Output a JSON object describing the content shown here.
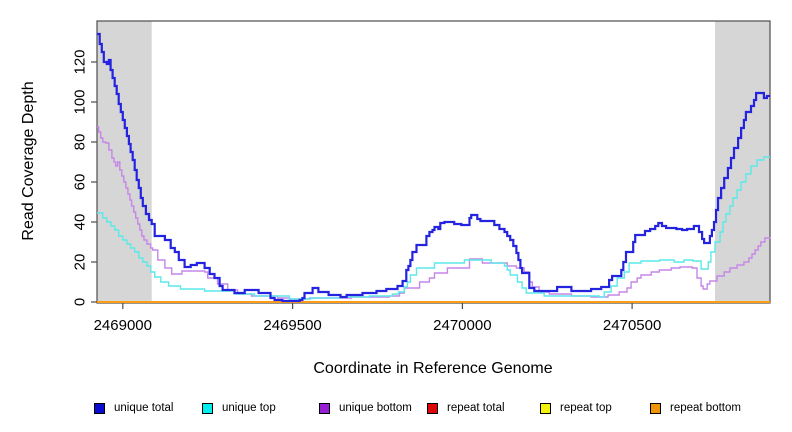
{
  "chart_data": {
    "type": "line",
    "xlabel": "Coordinate in Reference Genome",
    "ylabel": "Read Coverage Depth",
    "xlim": [
      2468924,
      2470906
    ],
    "ylim": [
      0,
      140.5
    ],
    "x_ticks": [
      "2469000",
      "2469500",
      "2470000",
      "2470500"
    ],
    "x_tick_values": [
      2469000,
      2469500,
      2470000,
      2470500
    ],
    "y_ticks": [
      "0",
      "20",
      "40",
      "60",
      "80",
      "100",
      "120"
    ],
    "y_tick_values": [
      0,
      20,
      40,
      60,
      80,
      100,
      120
    ],
    "grid": "off",
    "legend_position": "bottom",
    "shaded_color": "#d6d6d6",
    "axis_color": "#4d4d4d",
    "shaded_regions": [
      {
        "from": 2468924,
        "to": 2469085
      },
      {
        "from": 2470744,
        "to": 2470906
      }
    ],
    "series": [
      {
        "name": "unique total",
        "color": "#0c0cd0",
        "line_color": "#2424e0",
        "line_width": 2.2,
        "points": [
          [
            2468924,
            134
          ],
          [
            2468932,
            129
          ],
          [
            2468938,
            125
          ],
          [
            2468944,
            120
          ],
          [
            2468953,
            119
          ],
          [
            2468959,
            121
          ],
          [
            2468964,
            116
          ],
          [
            2468970,
            112
          ],
          [
            2468976,
            108
          ],
          [
            2468982,
            104
          ],
          [
            2468988,
            99
          ],
          [
            2468994,
            95
          ],
          [
            2469000,
            91
          ],
          [
            2469006,
            87
          ],
          [
            2469012,
            83
          ],
          [
            2469018,
            79
          ],
          [
            2469023,
            75
          ],
          [
            2469029,
            71
          ],
          [
            2469035,
            66
          ],
          [
            2469041,
            61
          ],
          [
            2469047,
            57
          ],
          [
            2469053,
            52
          ],
          [
            2469059,
            48
          ],
          [
            2469068,
            44
          ],
          [
            2469077,
            41
          ],
          [
            2469085,
            39
          ],
          [
            2469094,
            33
          ],
          [
            2469124,
            31
          ],
          [
            2469141,
            27
          ],
          [
            2469153,
            25
          ],
          [
            2469165,
            21
          ],
          [
            2469182,
            17.5
          ],
          [
            2469200,
            18.5
          ],
          [
            2469218,
            19.5
          ],
          [
            2469241,
            17
          ],
          [
            2469256,
            14
          ],
          [
            2469270,
            12
          ],
          [
            2469285,
            8
          ],
          [
            2469294,
            6
          ],
          [
            2469329,
            4.5
          ],
          [
            2469359,
            6
          ],
          [
            2469400,
            4.5
          ],
          [
            2469435,
            2
          ],
          [
            2469447,
            1
          ],
          [
            2469470,
            0.5
          ],
          [
            2469521,
            1
          ],
          [
            2469529,
            2
          ],
          [
            2469535,
            4.5
          ],
          [
            2469559,
            7
          ],
          [
            2469576,
            5
          ],
          [
            2469606,
            3.5
          ],
          [
            2469641,
            2.5
          ],
          [
            2469659,
            3.5
          ],
          [
            2469706,
            4.5
          ],
          [
            2469747,
            5.5
          ],
          [
            2469776,
            6.5
          ],
          [
            2469809,
            8
          ],
          [
            2469824,
            10.5
          ],
          [
            2469835,
            16
          ],
          [
            2469841,
            18
          ],
          [
            2469847,
            21
          ],
          [
            2469853,
            25
          ],
          [
            2469865,
            28.5
          ],
          [
            2469894,
            33
          ],
          [
            2469903,
            35
          ],
          [
            2469912,
            36
          ],
          [
            2469918,
            37.5
          ],
          [
            2469929,
            36.5
          ],
          [
            2469935,
            39.5
          ],
          [
            2469947,
            40
          ],
          [
            2469976,
            39
          ],
          [
            2469997,
            38.5
          ],
          [
            2470021,
            42
          ],
          [
            2470026,
            43.5
          ],
          [
            2470044,
            41.5
          ],
          [
            2470053,
            40.5
          ],
          [
            2470094,
            38.5
          ],
          [
            2470109,
            36.5
          ],
          [
            2470124,
            35
          ],
          [
            2470132,
            33
          ],
          [
            2470141,
            31
          ],
          [
            2470150,
            28
          ],
          [
            2470159,
            24.5
          ],
          [
            2470165,
            21
          ],
          [
            2470171,
            17
          ],
          [
            2470176,
            14.5
          ],
          [
            2470197,
            7
          ],
          [
            2470212,
            5.5
          ],
          [
            2470279,
            7.5
          ],
          [
            2470321,
            5.5
          ],
          [
            2470379,
            6.5
          ],
          [
            2470409,
            7.5
          ],
          [
            2470432,
            11
          ],
          [
            2470441,
            13
          ],
          [
            2470468,
            16
          ],
          [
            2470474,
            20
          ],
          [
            2470482,
            25
          ],
          [
            2470503,
            30
          ],
          [
            2470509,
            33.5
          ],
          [
            2470538,
            35.5
          ],
          [
            2470553,
            36.5
          ],
          [
            2470568,
            38
          ],
          [
            2470577,
            39.5
          ],
          [
            2470588,
            38
          ],
          [
            2470600,
            37
          ],
          [
            2470630,
            36.5
          ],
          [
            2470647,
            36
          ],
          [
            2470662,
            36.5
          ],
          [
            2470682,
            38
          ],
          [
            2470697,
            35
          ],
          [
            2470706,
            31.5
          ],
          [
            2470712,
            29.5
          ],
          [
            2470729,
            33
          ],
          [
            2470735,
            36
          ],
          [
            2470741,
            40
          ],
          [
            2470747,
            46
          ],
          [
            2470753,
            52
          ],
          [
            2470762,
            57
          ],
          [
            2470771,
            62
          ],
          [
            2470782,
            67
          ],
          [
            2470791,
            72
          ],
          [
            2470800,
            77
          ],
          [
            2470812,
            82
          ],
          [
            2470821,
            87
          ],
          [
            2470829,
            91
          ],
          [
            2470835,
            95
          ],
          [
            2470850,
            98
          ],
          [
            2470859,
            101
          ],
          [
            2470865,
            104.5
          ],
          [
            2470882,
            104.5
          ],
          [
            2470888,
            102
          ],
          [
            2470897,
            103
          ],
          [
            2470906,
            103
          ]
        ]
      },
      {
        "name": "unique top",
        "color": "#00eeee",
        "line_color": "#5ce9e9",
        "line_width": 1.4,
        "points": [
          [
            2468924,
            44.5
          ],
          [
            2468941,
            42
          ],
          [
            2468953,
            40
          ],
          [
            2468965,
            38
          ],
          [
            2468976,
            36
          ],
          [
            2468988,
            33
          ],
          [
            2469000,
            31
          ],
          [
            2469012,
            29
          ],
          [
            2469023,
            27
          ],
          [
            2469035,
            25
          ],
          [
            2469047,
            22
          ],
          [
            2469059,
            20
          ],
          [
            2469071,
            18
          ],
          [
            2469082,
            15
          ],
          [
            2469094,
            12.5
          ],
          [
            2469112,
            10
          ],
          [
            2469135,
            8
          ],
          [
            2469170,
            6.5
          ],
          [
            2469241,
            5.5
          ],
          [
            2469329,
            4
          ],
          [
            2469388,
            3
          ],
          [
            2469491,
            1.5
          ],
          [
            2469553,
            2
          ],
          [
            2469641,
            2.5
          ],
          [
            2469726,
            3
          ],
          [
            2469794,
            4
          ],
          [
            2469812,
            5
          ],
          [
            2469829,
            7.5
          ],
          [
            2469838,
            10
          ],
          [
            2469847,
            13.5
          ],
          [
            2469865,
            17
          ],
          [
            2469918,
            19.5
          ],
          [
            2470006,
            21
          ],
          [
            2470085,
            19.5
          ],
          [
            2470124,
            18
          ],
          [
            2470132,
            16
          ],
          [
            2470141,
            13.5
          ],
          [
            2470162,
            10
          ],
          [
            2470176,
            7
          ],
          [
            2470188,
            4.5
          ],
          [
            2470241,
            3
          ],
          [
            2470403,
            2.5
          ],
          [
            2470418,
            5
          ],
          [
            2470438,
            8
          ],
          [
            2470456,
            12
          ],
          [
            2470477,
            15
          ],
          [
            2470491,
            19.5
          ],
          [
            2470526,
            20.5
          ],
          [
            2470581,
            21
          ],
          [
            2470624,
            20
          ],
          [
            2470653,
            21
          ],
          [
            2470679,
            20.5
          ],
          [
            2470703,
            16.5
          ],
          [
            2470724,
            20
          ],
          [
            2470732,
            25
          ],
          [
            2470744,
            30
          ],
          [
            2470759,
            35
          ],
          [
            2470768,
            40
          ],
          [
            2470776,
            44
          ],
          [
            2470788,
            48
          ],
          [
            2470797,
            52
          ],
          [
            2470809,
            56
          ],
          [
            2470821,
            60
          ],
          [
            2470835,
            64
          ],
          [
            2470850,
            68
          ],
          [
            2470868,
            71
          ],
          [
            2470888,
            72.5
          ],
          [
            2470906,
            72.5
          ]
        ]
      },
      {
        "name": "unique bottom",
        "color": "#961fd4",
        "line_color": "#c687e8",
        "line_width": 1.4,
        "points": [
          [
            2468924,
            87.5
          ],
          [
            2468929,
            85
          ],
          [
            2468935,
            82
          ],
          [
            2468941,
            80
          ],
          [
            2468950,
            79.5
          ],
          [
            2468959,
            76
          ],
          [
            2468968,
            72
          ],
          [
            2468974,
            70
          ],
          [
            2468979,
            68
          ],
          [
            2468985,
            70
          ],
          [
            2468991,
            66
          ],
          [
            2468997,
            63
          ],
          [
            2469003,
            60
          ],
          [
            2469009,
            57
          ],
          [
            2469015,
            54
          ],
          [
            2469021,
            51
          ],
          [
            2469026,
            48
          ],
          [
            2469032,
            45
          ],
          [
            2469038,
            42
          ],
          [
            2469044,
            39
          ],
          [
            2469050,
            36
          ],
          [
            2469056,
            33
          ],
          [
            2469062,
            31
          ],
          [
            2469071,
            29
          ],
          [
            2469082,
            27
          ],
          [
            2469088,
            26
          ],
          [
            2469103,
            21
          ],
          [
            2469124,
            17
          ],
          [
            2469144,
            14
          ],
          [
            2469174,
            15.5
          ],
          [
            2469241,
            15
          ],
          [
            2469250,
            12
          ],
          [
            2469279,
            9
          ],
          [
            2469309,
            6
          ],
          [
            2469338,
            4
          ],
          [
            2469379,
            3
          ],
          [
            2469456,
            2
          ],
          [
            2469491,
            1.5
          ],
          [
            2469550,
            2
          ],
          [
            2469673,
            2.5
          ],
          [
            2469785,
            3
          ],
          [
            2469815,
            4.5
          ],
          [
            2469829,
            7
          ],
          [
            2469874,
            10
          ],
          [
            2469903,
            12
          ],
          [
            2469918,
            14.5
          ],
          [
            2469956,
            17
          ],
          [
            2470021,
            21.5
          ],
          [
            2470059,
            19.5
          ],
          [
            2470132,
            18
          ],
          [
            2470159,
            17
          ],
          [
            2470182,
            15
          ],
          [
            2470197,
            10
          ],
          [
            2470206,
            7.5
          ],
          [
            2470226,
            5
          ],
          [
            2470256,
            4
          ],
          [
            2470321,
            3
          ],
          [
            2470379,
            2.5
          ],
          [
            2470429,
            3.5
          ],
          [
            2470462,
            5
          ],
          [
            2470485,
            7
          ],
          [
            2470497,
            10
          ],
          [
            2470515,
            12
          ],
          [
            2470526,
            13.5
          ],
          [
            2470556,
            15
          ],
          [
            2470580,
            16
          ],
          [
            2470615,
            17
          ],
          [
            2470641,
            17.5
          ],
          [
            2470677,
            17
          ],
          [
            2470691,
            12
          ],
          [
            2470703,
            8
          ],
          [
            2470709,
            6.5
          ],
          [
            2470721,
            9
          ],
          [
            2470729,
            10.5
          ],
          [
            2470750,
            13
          ],
          [
            2470771,
            15
          ],
          [
            2470788,
            17
          ],
          [
            2470809,
            18.5
          ],
          [
            2470829,
            20
          ],
          [
            2470844,
            22
          ],
          [
            2470853,
            24
          ],
          [
            2470862,
            26
          ],
          [
            2470871,
            28
          ],
          [
            2470879,
            30
          ],
          [
            2470891,
            32
          ],
          [
            2470906,
            32.5
          ]
        ]
      },
      {
        "name": "repeat total",
        "color": "#dd0606",
        "line_color": "#de0000",
        "line_width": 1.4,
        "points": [
          [
            2468924,
            0
          ],
          [
            2470906,
            0
          ]
        ]
      },
      {
        "name": "repeat top",
        "color": "#f2f20a",
        "line_color": "#f5f500",
        "line_width": 1.4,
        "points": [
          [
            2468924,
            0
          ],
          [
            2470906,
            0
          ]
        ]
      },
      {
        "name": "repeat bottom",
        "color": "#ef9405",
        "line_color": "#ff9e15",
        "line_width": 2,
        "points": [
          [
            2468924,
            0
          ],
          [
            2470906,
            0
          ]
        ]
      }
    ]
  }
}
